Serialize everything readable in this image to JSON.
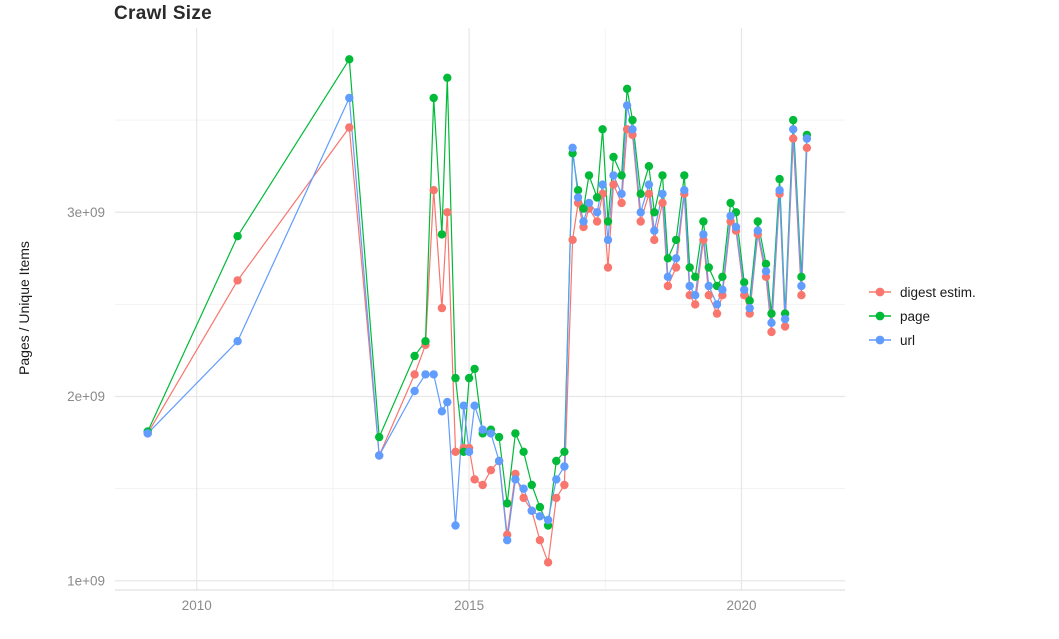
{
  "chart_data": {
    "type": "line",
    "title": "Crawl Size",
    "xlabel": "",
    "ylabel": "Pages / Unique Items",
    "y_unit": "1e9",
    "xlim": [
      2008.5,
      2021.9
    ],
    "ylim": [
      0.95,
      4.0
    ],
    "grid": true,
    "legend_position": "right",
    "background": "#ffffff",
    "grid_major_color": "#e7e7e7",
    "grid_minor_color": "#f3f3f3",
    "axis_text_color": "#8a8a8a",
    "x_ticks": [
      {
        "value": 2010,
        "label": "2010"
      },
      {
        "value": 2015,
        "label": "2015"
      },
      {
        "value": 2020,
        "label": "2020"
      }
    ],
    "y_ticks": [
      {
        "value": 1,
        "label": "1e+09"
      },
      {
        "value": 2,
        "label": "2e+09"
      },
      {
        "value": 3,
        "label": "3e+09"
      }
    ],
    "x_minor": [
      2012.5,
      2017.5
    ],
    "y_minor": [
      1.5,
      2.5,
      3.5
    ],
    "x": [
      2009.1,
      2010.75,
      2012.8,
      2013.35,
      2014.0,
      2014.2,
      2014.35,
      2014.5,
      2014.6,
      2014.75,
      2014.9,
      2015.0,
      2015.1,
      2015.25,
      2015.4,
      2015.55,
      2015.7,
      2015.85,
      2016.0,
      2016.15,
      2016.3,
      2016.45,
      2016.6,
      2016.75,
      2016.9,
      2017.0,
      2017.1,
      2017.2,
      2017.35,
      2017.45,
      2017.55,
      2017.65,
      2017.8,
      2017.9,
      2018.0,
      2018.15,
      2018.3,
      2018.4,
      2018.55,
      2018.65,
      2018.8,
      2018.95,
      2019.05,
      2019.15,
      2019.3,
      2019.4,
      2019.55,
      2019.65,
      2019.8,
      2019.9,
      2020.05,
      2020.15,
      2020.3,
      2020.45,
      2020.55,
      2020.7,
      2020.8,
      2020.95,
      2021.1,
      2021.2
    ],
    "series": [
      {
        "name": "digest estim.",
        "color": "#F8766D",
        "values": [
          1.8,
          2.63,
          3.46,
          1.68,
          2.12,
          2.28,
          3.12,
          2.48,
          3.0,
          1.7,
          1.72,
          1.72,
          1.55,
          1.52,
          1.6,
          1.65,
          1.25,
          1.58,
          1.45,
          1.38,
          1.22,
          1.1,
          1.45,
          1.52,
          2.85,
          3.05,
          2.92,
          3.02,
          2.95,
          3.1,
          2.7,
          3.15,
          3.05,
          3.45,
          3.42,
          2.95,
          3.1,
          2.85,
          3.05,
          2.6,
          2.7,
          3.1,
          2.55,
          2.5,
          2.85,
          2.55,
          2.45,
          2.55,
          2.95,
          2.9,
          2.55,
          2.45,
          2.88,
          2.65,
          2.35,
          3.1,
          2.38,
          3.4,
          2.55,
          3.35
        ]
      },
      {
        "name": "page",
        "color": "#00BA38",
        "values": [
          1.81,
          2.87,
          3.83,
          1.78,
          2.22,
          2.3,
          3.62,
          2.88,
          3.73,
          2.1,
          1.7,
          2.1,
          2.15,
          1.8,
          1.82,
          1.78,
          1.42,
          1.8,
          1.7,
          1.52,
          1.4,
          1.3,
          1.65,
          1.7,
          3.32,
          3.12,
          3.02,
          3.2,
          3.08,
          3.45,
          2.95,
          3.3,
          3.2,
          3.67,
          3.5,
          3.1,
          3.25,
          3.0,
          3.2,
          2.75,
          2.85,
          3.2,
          2.7,
          2.65,
          2.95,
          2.7,
          2.6,
          2.65,
          3.05,
          3.0,
          2.62,
          2.52,
          2.95,
          2.72,
          2.45,
          3.18,
          2.45,
          3.5,
          2.65,
          3.42
        ]
      },
      {
        "name": "url",
        "color": "#619CFF",
        "values": [
          1.8,
          2.3,
          3.62,
          1.68,
          2.03,
          2.12,
          2.12,
          1.92,
          1.97,
          1.3,
          1.95,
          1.7,
          1.95,
          1.82,
          1.8,
          1.65,
          1.22,
          1.55,
          1.5,
          1.38,
          1.35,
          1.33,
          1.55,
          1.62,
          3.35,
          3.08,
          2.95,
          3.05,
          3.0,
          3.15,
          2.85,
          3.2,
          3.1,
          3.58,
          3.45,
          3.0,
          3.15,
          2.9,
          3.1,
          2.65,
          2.75,
          3.12,
          2.6,
          2.55,
          2.88,
          2.6,
          2.5,
          2.58,
          2.98,
          2.92,
          2.58,
          2.48,
          2.9,
          2.68,
          2.4,
          3.12,
          2.42,
          3.45,
          2.6,
          3.4
        ]
      }
    ]
  }
}
